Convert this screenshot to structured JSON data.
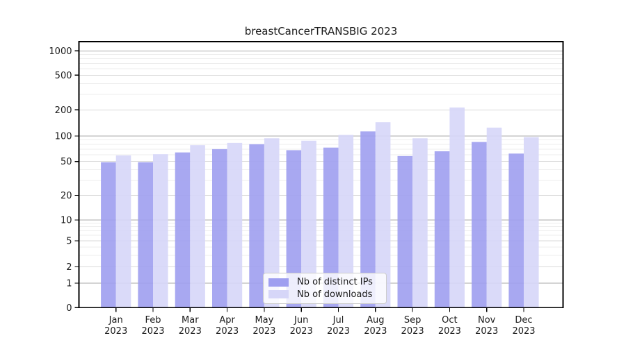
{
  "chart_data": {
    "type": "bar",
    "title": "breastCancerTRANSBIG 2023",
    "categories": [
      "Jan",
      "Feb",
      "Mar",
      "Apr",
      "May",
      "Jun",
      "Jul",
      "Aug",
      "Sep",
      "Oct",
      "Nov",
      "Dec"
    ],
    "category_year": "2023",
    "series": [
      {
        "name": "Nb of distinct IPs",
        "color": "#9f9ff0",
        "values": [
          49,
          49,
          64,
          70,
          80,
          68,
          73,
          113,
          58,
          66,
          85,
          62
        ]
      },
      {
        "name": "Nb of downloads",
        "color": "#d6d6f8",
        "values": [
          59,
          61,
          78,
          83,
          94,
          88,
          103,
          144,
          94,
          213,
          125,
          97
        ]
      }
    ],
    "y_axis": {
      "scale": "log-like",
      "ticks": [
        0,
        1,
        2,
        5,
        10,
        20,
        50,
        100,
        200,
        500,
        1000
      ],
      "minor_gridlines": [
        3,
        4,
        6,
        7,
        8,
        9,
        30,
        40,
        60,
        70,
        80,
        90,
        300,
        400,
        600,
        700,
        800,
        900
      ],
      "ylim": [
        0,
        1000
      ]
    },
    "grid": true,
    "legend_position": "lower center"
  },
  "colors": {
    "axis": "#000000",
    "tick_label": "#1a1a1a",
    "grid_major": "#a9a9a9",
    "grid_mid": "#d9d9d9",
    "grid_minor": "#ededed",
    "background": "#ffffff"
  }
}
